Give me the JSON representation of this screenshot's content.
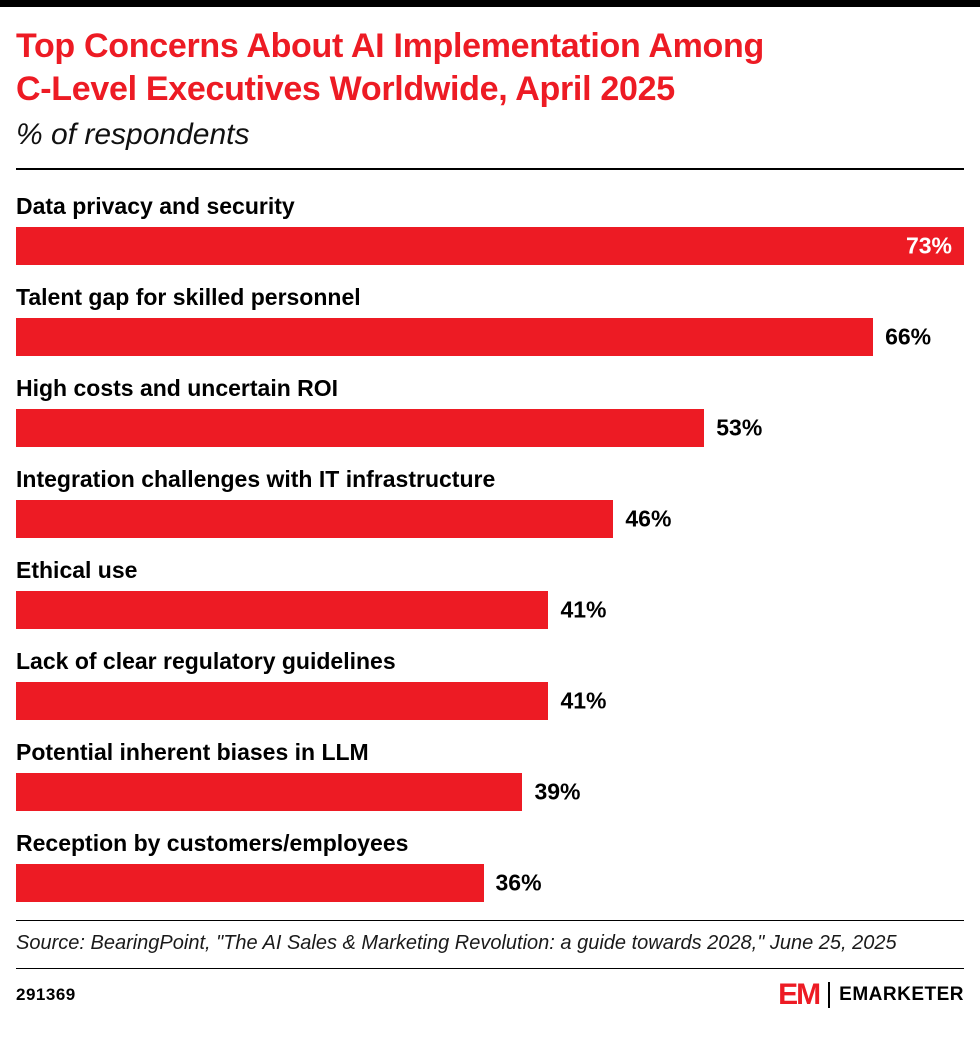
{
  "colors": {
    "brand_red": "#ED1B24",
    "bar_color": "#ED1B24",
    "text": "#000000"
  },
  "header": {
    "title_lines": [
      "Top Concerns About AI Implementation Among",
      "C-Level Executives Worldwide, April 2025"
    ],
    "subtitle": "% of respondents"
  },
  "chart_data": {
    "type": "bar",
    "orientation": "horizontal",
    "title": "Top Concerns About AI Implementation Among C-Level Executives Worldwide, April 2025",
    "subtitle": "% of respondents",
    "value_unit": "% of respondents",
    "xlim": [
      0,
      73
    ],
    "grid": false,
    "legend": false,
    "bar_color": "#ED1B24",
    "categories": [
      "Data privacy and security",
      "Talent gap for skilled personnel",
      "High costs and uncertain ROI",
      "Integration challenges with IT infrastructure",
      "Ethical use",
      "Lack of clear regulatory guidelines",
      "Potential inherent biases in LLM",
      "Reception by customers/employees"
    ],
    "values": [
      73,
      66,
      53,
      46,
      41,
      41,
      39,
      36
    ],
    "display_values": [
      "73%",
      "66%",
      "53%",
      "46%",
      "41%",
      "41%",
      "39%",
      "36%"
    ]
  },
  "footer": {
    "source": "Source: BearingPoint, \"The AI Sales & Marketing Revolution: a guide towards 2028,\" June 25, 2025",
    "report_id": "291369",
    "logo_mark": "EM",
    "logo_word": "EMARKETER"
  }
}
